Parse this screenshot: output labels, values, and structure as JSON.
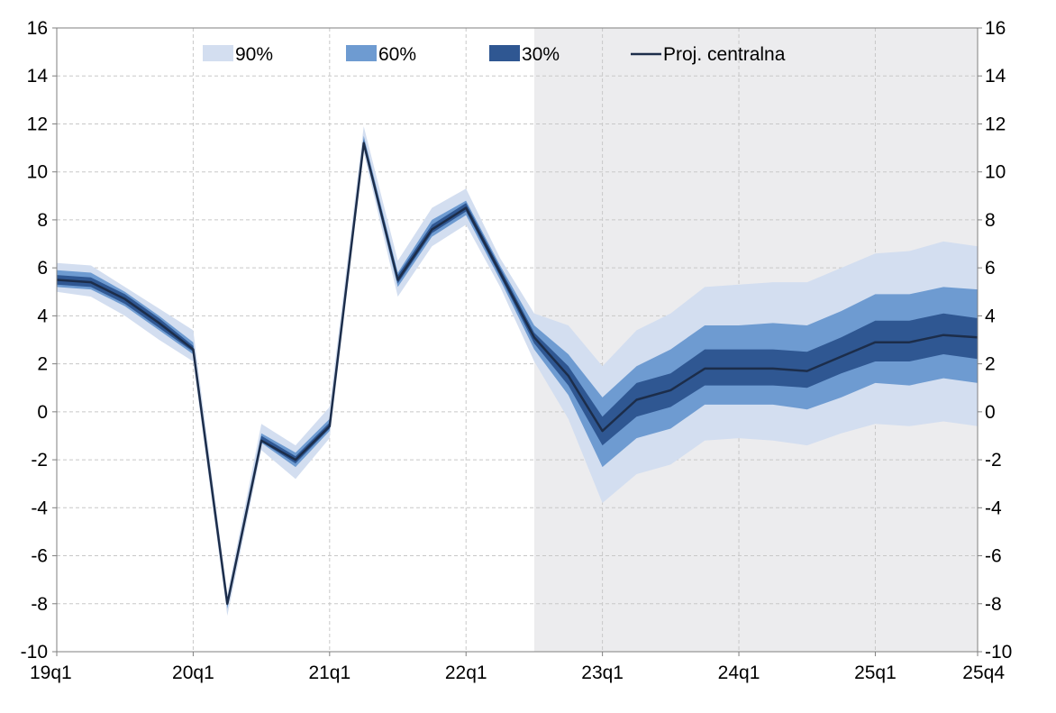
{
  "chart_data": {
    "type": "area",
    "title": "",
    "xlabel": "",
    "ylabel": "",
    "ylim": [
      -10,
      16
    ],
    "y_ticks": [
      -10,
      -8,
      -6,
      -4,
      -2,
      0,
      2,
      4,
      6,
      8,
      10,
      12,
      14,
      16
    ],
    "x_tick_labels": [
      "19q1",
      "20q1",
      "21q1",
      "22q1",
      "23q1",
      "24q1",
      "25q1",
      "25q4"
    ],
    "quarters": [
      "19q1",
      "19q2",
      "19q3",
      "19q4",
      "20q1",
      "20q2",
      "20q3",
      "20q4",
      "21q1",
      "21q2",
      "21q3",
      "21q4",
      "22q1",
      "22q2",
      "22q3",
      "22q4",
      "23q1",
      "23q2",
      "23q3",
      "23q4",
      "24q1",
      "24q2",
      "24q3",
      "24q4",
      "25q1",
      "25q2",
      "25q3",
      "25q4"
    ],
    "projection_start": "22q3",
    "grid": true,
    "legend_position": "top",
    "legend": [
      {
        "label": "90%",
        "color": "#d3def0"
      },
      {
        "label": "60%",
        "color": "#6e9bd1"
      },
      {
        "label": "30%",
        "color": "#2f5792"
      },
      {
        "label": "Proj. centralna",
        "color": "#1c2d4a"
      }
    ],
    "colors": {
      "band_90": "#d3def0",
      "band_60": "#6e9bd1",
      "band_30": "#2f5792",
      "central": "#1c2d4a",
      "projection_shade": "#ececee"
    },
    "series": [
      {
        "name": "Proj. centralna",
        "values": [
          5.5,
          5.4,
          4.7,
          3.7,
          2.6,
          -8.0,
          -1.2,
          -2.0,
          -0.6,
          11.2,
          5.5,
          7.6,
          8.5,
          5.8,
          3.1,
          1.5,
          -0.8,
          0.5,
          0.9,
          1.8,
          1.8,
          1.8,
          1.7,
          2.3,
          2.9,
          2.9,
          3.2,
          3.1
        ]
      },
      {
        "name": "90%",
        "lower": [
          5.0,
          4.8,
          4.0,
          3.0,
          2.1,
          -8.5,
          -1.6,
          -2.8,
          -1.1,
          10.8,
          4.8,
          6.9,
          7.8,
          5.2,
          2.1,
          -0.3,
          -3.8,
          -2.6,
          -2.2,
          -1.2,
          -1.1,
          -1.2,
          -1.4,
          -0.9,
          -0.5,
          -0.6,
          -0.4,
          -0.6
        ],
        "upper": [
          6.2,
          6.1,
          5.2,
          4.3,
          3.4,
          -7.6,
          -0.5,
          -1.4,
          0.2,
          11.9,
          6.3,
          8.5,
          9.3,
          6.4,
          4.1,
          3.6,
          1.9,
          3.4,
          4.1,
          5.2,
          5.3,
          5.4,
          5.4,
          6.0,
          6.6,
          6.7,
          7.1,
          6.9
        ]
      },
      {
        "name": "60%",
        "lower": [
          5.2,
          5.1,
          4.4,
          3.4,
          2.4,
          -8.2,
          -1.3,
          -2.3,
          -0.8,
          11.0,
          5.2,
          7.3,
          8.2,
          5.5,
          2.6,
          0.7,
          -2.3,
          -1.1,
          -0.7,
          0.3,
          0.3,
          0.3,
          0.1,
          0.6,
          1.2,
          1.1,
          1.4,
          1.2
        ]
      },
      {
        "name": "60%",
        "upper": [
          5.9,
          5.8,
          5.0,
          4.0,
          2.9,
          -7.8,
          -0.9,
          -1.7,
          -0.3,
          11.5,
          5.8,
          8.0,
          8.8,
          6.1,
          3.6,
          2.4,
          0.6,
          1.9,
          2.6,
          3.6,
          3.6,
          3.7,
          3.6,
          4.2,
          4.9,
          4.9,
          5.2,
          5.1
        ]
      },
      {
        "name": "30%",
        "lower": [
          5.3,
          5.2,
          4.5,
          3.5,
          2.5,
          -8.1,
          -1.25,
          -2.15,
          -0.7,
          11.1,
          5.35,
          7.45,
          8.35,
          5.65,
          2.85,
          1.1,
          -1.4,
          -0.2,
          0.2,
          1.1,
          1.1,
          1.1,
          1.0,
          1.6,
          2.1,
          2.1,
          2.4,
          2.2
        ],
        "upper": [
          5.7,
          5.6,
          4.9,
          3.9,
          2.75,
          -7.9,
          -1.0,
          -1.85,
          -0.45,
          11.35,
          5.7,
          7.8,
          8.7,
          6.0,
          3.3,
          1.9,
          -0.2,
          1.2,
          1.6,
          2.6,
          2.6,
          2.6,
          2.5,
          3.1,
          3.8,
          3.8,
          4.1,
          3.9
        ]
      }
    ]
  }
}
